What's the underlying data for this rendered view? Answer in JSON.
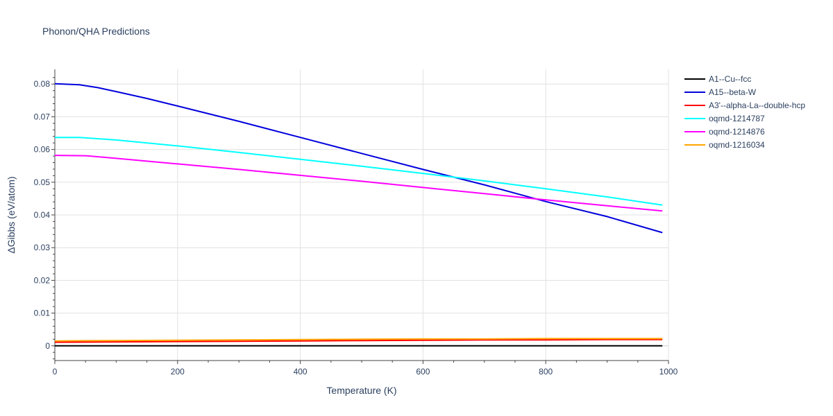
{
  "chart_data": {
    "type": "line",
    "title": "Phonon/QHA Predictions",
    "xlabel": "Temperature (K)",
    "ylabel": "ΔGibbs (eV/atom)",
    "xlim": [
      0,
      1000
    ],
    "ylim": [
      -0.0045,
      0.0845
    ],
    "xticks": [
      0,
      200,
      400,
      600,
      800,
      1000
    ],
    "yticks": [
      0,
      0.01,
      0.02,
      0.03,
      0.04,
      0.05,
      0.06,
      0.07,
      0.08
    ],
    "ytick_labels": [
      "0",
      "0.01",
      "0.02",
      "0.03",
      "0.04",
      "0.05",
      "0.06",
      "0.07",
      "0.08"
    ],
    "grid": true,
    "legend_position": "right",
    "series": [
      {
        "name": "A1--Cu--fcc",
        "color": "#000000",
        "x": [
          0,
          100,
          200,
          300,
          400,
          500,
          600,
          700,
          800,
          900,
          990
        ],
        "y": [
          0,
          0,
          0,
          0,
          0,
          0,
          0,
          0,
          0,
          0,
          0
        ]
      },
      {
        "name": "A15--beta-W",
        "color": "#0000dd",
        "x": [
          0,
          40,
          70,
          100,
          150,
          200,
          300,
          400,
          500,
          600,
          700,
          800,
          900,
          990
        ],
        "y": [
          0.0801,
          0.0798,
          0.0789,
          0.0777,
          0.0756,
          0.0733,
          0.0686,
          0.0637,
          0.0588,
          0.0539,
          0.0492,
          0.0441,
          0.0395,
          0.0346
        ]
      },
      {
        "name": "A3'--alpha-La--double-hcp",
        "color": "#ff0000",
        "x": [
          0,
          100,
          200,
          300,
          400,
          500,
          600,
          700,
          800,
          900,
          990
        ],
        "y": [
          0.0011,
          0.0012,
          0.0013,
          0.0014,
          0.0015,
          0.0016,
          0.0017,
          0.0018,
          0.0018,
          0.0019,
          0.0019
        ]
      },
      {
        "name": "oqmd-1214787",
        "color": "#00ffff",
        "x": [
          0,
          40,
          100,
          200,
          300,
          400,
          500,
          600,
          700,
          800,
          900,
          990
        ],
        "y": [
          0.0637,
          0.0637,
          0.0629,
          0.0611,
          0.0591,
          0.057,
          0.0549,
          0.0527,
          0.0504,
          0.048,
          0.0455,
          0.043
        ]
      },
      {
        "name": "oqmd-1214876",
        "color": "#ff00ff",
        "x": [
          0,
          50,
          100,
          200,
          300,
          400,
          500,
          600,
          700,
          800,
          900,
          990
        ],
        "y": [
          0.0582,
          0.0581,
          0.0573,
          0.0556,
          0.0539,
          0.0521,
          0.0503,
          0.0484,
          0.0465,
          0.0446,
          0.0428,
          0.0412
        ]
      },
      {
        "name": "oqmd-1216034",
        "color": "#ffa500",
        "x": [
          0,
          100,
          200,
          300,
          400,
          500,
          600,
          700,
          800,
          900,
          990
        ],
        "y": [
          0.0015,
          0.0016,
          0.0017,
          0.0018,
          0.0019,
          0.002,
          0.0021,
          0.0021,
          0.0022,
          0.0022,
          0.0022
        ]
      }
    ]
  }
}
